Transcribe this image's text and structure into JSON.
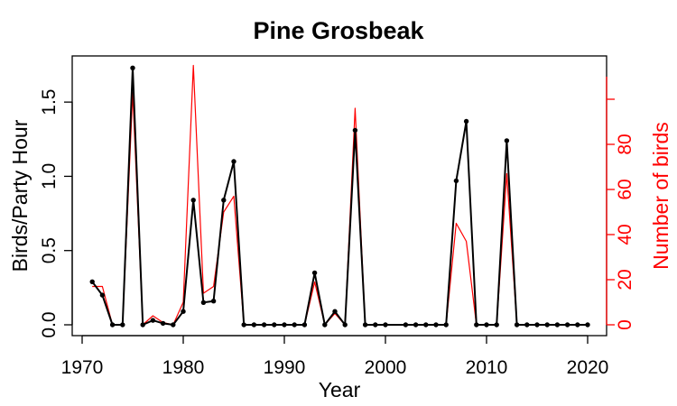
{
  "chart_data": {
    "type": "line",
    "title": "Pine Grosbeak",
    "xlabel": "Year",
    "ylabel": "Birds/Party Hour",
    "y2label": "Number of birds",
    "xlim": [
      1970,
      2020
    ],
    "ylim": [
      0,
      1.75
    ],
    "y2lim": [
      0,
      118
    ],
    "x_ticks": [
      1970,
      1980,
      1990,
      2000,
      2010,
      2020
    ],
    "y_ticks": [
      0.0,
      0.5,
      1.0,
      1.5
    ],
    "y2_ticks": [
      0,
      20,
      40,
      60,
      80
    ],
    "y_tick_labels": [
      "0.0",
      "0.5",
      "1.0",
      "1.5"
    ],
    "y2_tick_labels": [
      "0",
      "20",
      "40",
      "60",
      "80"
    ],
    "colors": {
      "primary": "#000000",
      "secondary": "#ff0000"
    },
    "grid": false,
    "legend": "none",
    "series": [
      {
        "axis": "left",
        "color": "#000000",
        "markers": true,
        "x": [
          1971,
          1972,
          1973,
          1974,
          1975,
          1976,
          1977,
          1978,
          1979,
          1980,
          1981,
          1982,
          1983,
          1984,
          1985,
          1986,
          1987,
          1988,
          1989,
          1990,
          1991,
          1992,
          1993,
          1994,
          1995,
          1996,
          1997,
          1998,
          1999,
          2000,
          2002,
          2003,
          2004,
          2005,
          2006,
          2007,
          2008,
          2009,
          2010,
          2011,
          2012,
          2013,
          2014,
          2015,
          2016,
          2017,
          2018,
          2019,
          2020
        ],
        "values": [
          0.29,
          0.2,
          0.0,
          0.0,
          1.73,
          0.0,
          0.03,
          0.01,
          0.0,
          0.09,
          0.84,
          0.15,
          0.16,
          0.84,
          1.1,
          0.0,
          0.0,
          0.0,
          0.0,
          0.0,
          0.0,
          0.0,
          0.35,
          0.0,
          0.09,
          0.0,
          1.31,
          0.0,
          0.0,
          0.0,
          0.0,
          0.0,
          0.0,
          0.0,
          0.0,
          0.97,
          1.37,
          0.0,
          0.0,
          0.0,
          1.24,
          0.0,
          0.0,
          0.0,
          0.0,
          0.0,
          0.0,
          0.0,
          0.0
        ]
      },
      {
        "axis": "right",
        "color": "#ff0000",
        "markers": false,
        "x": [
          1971,
          1972,
          1973,
          1974,
          1975,
          1976,
          1977,
          1978,
          1979,
          1980,
          1981,
          1982,
          1983,
          1984,
          1985,
          1986,
          1987,
          1988,
          1989,
          1990,
          1991,
          1992,
          1993,
          1994,
          1995,
          1996,
          1997,
          1998,
          1999,
          2000,
          2002,
          2003,
          2004,
          2005,
          2006,
          2007,
          2008,
          2009,
          2010,
          2011,
          2012,
          2013,
          2014,
          2015,
          2016,
          2017,
          2018,
          2019,
          2020
        ],
        "values": [
          17,
          17,
          0,
          0,
          103,
          0,
          4,
          1,
          0,
          10,
          115,
          14,
          17,
          50,
          57,
          0,
          0,
          0,
          0,
          0,
          0,
          0,
          19,
          0,
          5,
          0,
          96,
          0,
          0,
          0,
          0,
          0,
          0,
          0,
          0,
          45,
          37,
          0,
          0,
          0,
          67,
          0,
          0,
          0,
          0,
          0,
          0,
          0,
          0
        ]
      }
    ]
  }
}
